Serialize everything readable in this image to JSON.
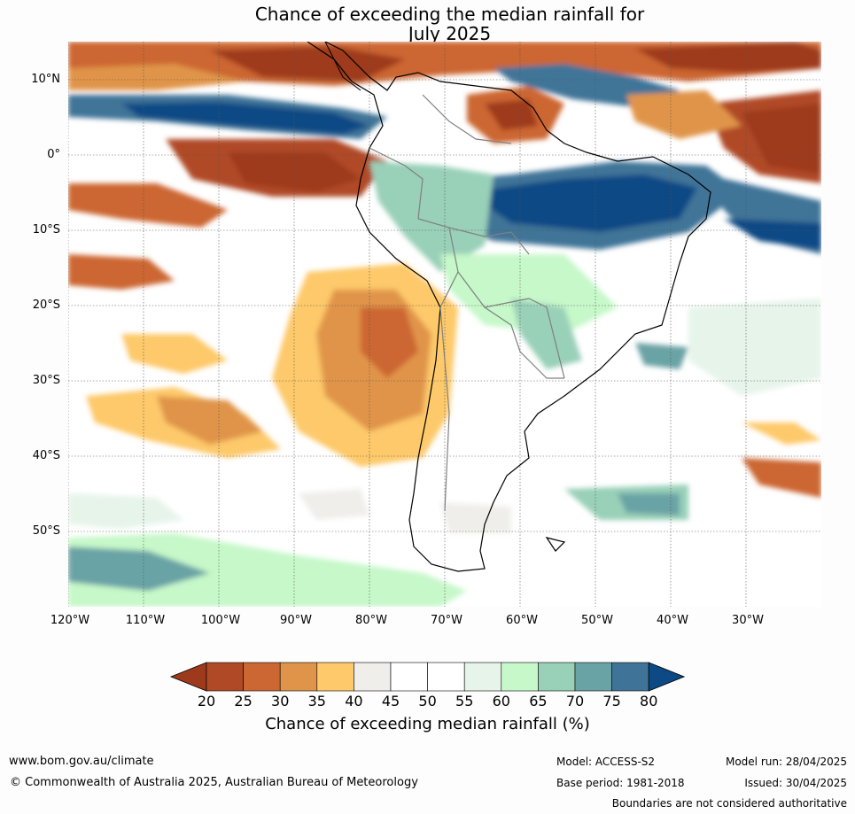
{
  "title_line1": "Chance of exceeding the median rainfall for",
  "title_line2": "July 2025",
  "latitude_labels": [
    "10°N",
    "0°",
    "10°S",
    "20°S",
    "30°S",
    "40°S",
    "50°S"
  ],
  "longitude_labels": [
    "120°W",
    "110°W",
    "100°W",
    "90°W",
    "80°W",
    "70°W",
    "60°W",
    "50°W",
    "40°W",
    "30°W"
  ],
  "colorbar": {
    "label": "Chance of exceeding median rainfall (%)",
    "ticks": [
      "20",
      "25",
      "30",
      "35",
      "40",
      "45",
      "50",
      "55",
      "60",
      "65",
      "70",
      "75",
      "80"
    ],
    "colors": [
      "#9e3a1c",
      "#b04a26",
      "#cc6633",
      "#e0944a",
      "#fdc96a",
      "#efeeea",
      "#ffffff",
      "#ffffff",
      "#e6f4ea",
      "#c6f8c9",
      "#99d0b8",
      "#6aa3a5",
      "#3f7498",
      "#0d4a85"
    ]
  },
  "footer": {
    "website": "www.bom.gov.au/climate",
    "copyright": "© Commonwealth of Australia 2025, Australian Bureau of Meteorology",
    "model": "Model: ACCESS-S2",
    "base_period": "Base period: 1981-2018",
    "model_run": "Model run: 28/04/2025",
    "issued": "Issued: 30/04/2025",
    "disclaimer": "Boundaries are not considered authoritative"
  }
}
